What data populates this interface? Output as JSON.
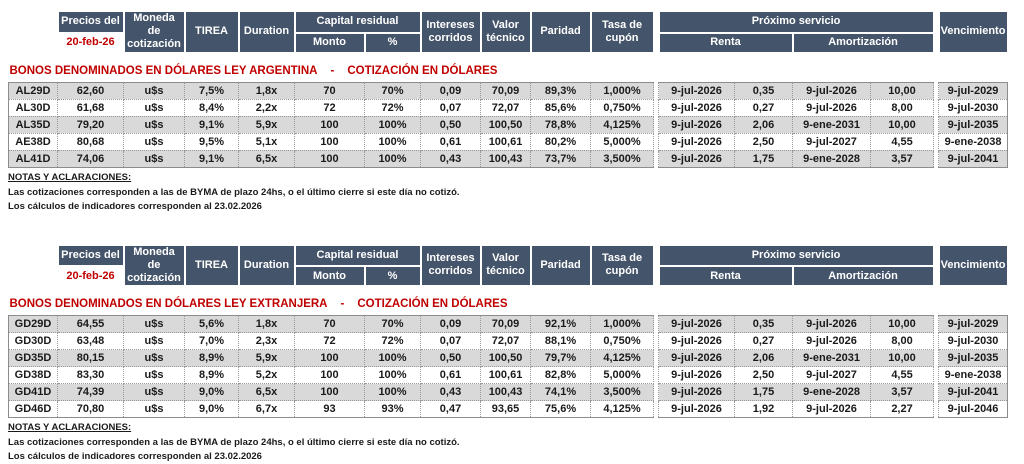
{
  "colors": {
    "header_bg": "#44546A",
    "accent_red": "#C00000",
    "row_alt": "#D9D9D9"
  },
  "header": {
    "precios_del": "Precios del",
    "fecha": "20-feb-26",
    "moneda": "Moneda de cotización",
    "tirea": "TIREA",
    "duration": "Duration",
    "capital_residual": "Capital residual",
    "monto": "Monto",
    "pct": "%",
    "intereses": "Intereses corridos",
    "valor_tecnico": "Valor técnico",
    "paridad": "Paridad",
    "tasa_cupon": "Tasa de cupón",
    "proximo_servicio": "Próximo servicio",
    "renta": "Renta",
    "amortizacion": "Amortización",
    "vencimiento": "Vencimiento"
  },
  "notes": {
    "heading": "NOTAS Y ACLARACIONES:",
    "line1": "Las cotizaciones corresponden a las de BYMA de plazo 24hs, o el último cierre si este día no cotizó.",
    "line2": "Los cálculos de indicadores corresponden al 23.02.2026"
  },
  "tables": [
    {
      "title_left": "BONOS DENOMINADOS EN DÓLARES LEY ARGENTINA",
      "title_sep": "-",
      "title_right": "COTIZACIÓN EN DÓLARES",
      "rows": [
        [
          "AL29D",
          "62,60",
          "u$s",
          "7,5%",
          "1,8x",
          "70",
          "70%",
          "0,09",
          "70,09",
          "89,3%",
          "1,000%",
          "9-jul-2026",
          "0,35",
          "9-jul-2026",
          "10,00",
          "9-jul-2029"
        ],
        [
          "AL30D",
          "61,68",
          "u$s",
          "8,4%",
          "2,2x",
          "72",
          "72%",
          "0,07",
          "72,07",
          "85,6%",
          "0,750%",
          "9-jul-2026",
          "0,27",
          "9-jul-2026",
          "8,00",
          "9-jul-2030"
        ],
        [
          "AL35D",
          "79,20",
          "u$s",
          "9,1%",
          "5,9x",
          "100",
          "100%",
          "0,50",
          "100,50",
          "78,8%",
          "4,125%",
          "9-jul-2026",
          "2,06",
          "9-ene-2031",
          "10,00",
          "9-jul-2035"
        ],
        [
          "AE38D",
          "80,68",
          "u$s",
          "9,5%",
          "5,1x",
          "100",
          "100%",
          "0,61",
          "100,61",
          "80,2%",
          "5,000%",
          "9-jul-2026",
          "2,50",
          "9-jul-2027",
          "4,55",
          "9-ene-2038"
        ],
        [
          "AL41D",
          "74,06",
          "u$s",
          "9,1%",
          "6,5x",
          "100",
          "100%",
          "0,43",
          "100,43",
          "73,7%",
          "3,500%",
          "9-jul-2026",
          "1,75",
          "9-ene-2028",
          "3,57",
          "9-jul-2041"
        ]
      ]
    },
    {
      "title_left": "BONOS DENOMINADOS EN DÓLARES LEY EXTRANJERA",
      "title_sep": "-",
      "title_right": "COTIZACIÓN EN DÓLARES",
      "rows": [
        [
          "GD29D",
          "64,55",
          "u$s",
          "5,6%",
          "1,8x",
          "70",
          "70%",
          "0,09",
          "70,09",
          "92,1%",
          "1,000%",
          "9-jul-2026",
          "0,35",
          "9-jul-2026",
          "10,00",
          "9-jul-2029"
        ],
        [
          "GD30D",
          "63,48",
          "u$s",
          "7,0%",
          "2,3x",
          "72",
          "72%",
          "0,07",
          "72,07",
          "88,1%",
          "0,750%",
          "9-jul-2026",
          "0,27",
          "9-jul-2026",
          "8,00",
          "9-jul-2030"
        ],
        [
          "GD35D",
          "80,15",
          "u$s",
          "8,9%",
          "5,9x",
          "100",
          "100%",
          "0,50",
          "100,50",
          "79,7%",
          "4,125%",
          "9-jul-2026",
          "2,06",
          "9-ene-2031",
          "10,00",
          "9-jul-2035"
        ],
        [
          "GD38D",
          "83,30",
          "u$s",
          "8,9%",
          "5,2x",
          "100",
          "100%",
          "0,61",
          "100,61",
          "82,8%",
          "5,000%",
          "9-jul-2026",
          "2,50",
          "9-jul-2027",
          "4,55",
          "9-ene-2038"
        ],
        [
          "GD41D",
          "74,39",
          "u$s",
          "9,0%",
          "6,5x",
          "100",
          "100%",
          "0,43",
          "100,43",
          "74,1%",
          "3,500%",
          "9-jul-2026",
          "1,75",
          "9-ene-2028",
          "3,57",
          "9-jul-2041"
        ],
        [
          "GD46D",
          "70,80",
          "u$s",
          "9,0%",
          "6,7x",
          "93",
          "93%",
          "0,47",
          "93,65",
          "75,6%",
          "4,125%",
          "9-jul-2026",
          "1,92",
          "9-jul-2026",
          "2,27",
          "9-jul-2046"
        ]
      ]
    }
  ]
}
